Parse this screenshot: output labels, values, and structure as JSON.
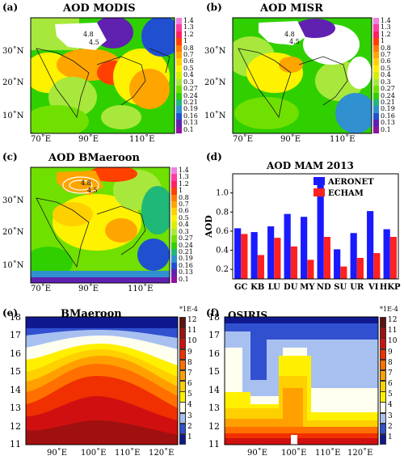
{
  "colorbar_map": {
    "labels": [
      "1.4",
      "1.3",
      "1.2",
      "1",
      "0.8",
      "0.7",
      "0.6",
      "0.5",
      "0.4",
      "0.3",
      "0.27",
      "0.24",
      "0.21",
      "0.19",
      "0.16",
      "0.13",
      "0.1"
    ],
    "colors": [
      "#f080e0",
      "#ff3ca0",
      "#ff2060",
      "#ff4000",
      "#ff7a00",
      "#ffa500",
      "#ffd000",
      "#fff200",
      "#d8f000",
      "#a8e83c",
      "#70e000",
      "#30d000",
      "#20b878",
      "#3090d0",
      "#2050d0",
      "#6020b0",
      "#9010a0"
    ]
  },
  "colorbar_profile": {
    "unit": "*1E-4",
    "labels": [
      "12",
      "11",
      "10",
      "9",
      "8",
      "7",
      "6",
      "5",
      "4",
      "3",
      "2",
      "1"
    ],
    "colors": [
      "#601010",
      "#a01010",
      "#d01010",
      "#f03000",
      "#ff7000",
      "#ffa000",
      "#ffd000",
      "#fff000",
      "#fffff0",
      "#a8c0f0",
      "#3050d0",
      "#101890"
    ]
  },
  "maps": {
    "lon_ticks": [
      "70˚E",
      "90˚E",
      "110˚E"
    ],
    "lat_ticks": [
      "30˚N",
      "20˚N",
      "10˚N"
    ],
    "contour_labels": [
      "4.8",
      "4.5"
    ]
  },
  "panels": {
    "a": {
      "label": "(a)",
      "title": "AOD MODIS"
    },
    "b": {
      "label": "(b)",
      "title": "AOD MISR"
    },
    "c": {
      "label": "(c)",
      "title": "AOD BMaeroon"
    },
    "d": {
      "label": "(d)",
      "title": "AOD MAM 2013"
    },
    "e": {
      "label": "(e)",
      "title": "BMaeroon"
    },
    "f": {
      "label": "(f)",
      "title": "OSIRIS"
    }
  },
  "chart_data": [
    {
      "type": "bar",
      "title": "AOD MAM 2013",
      "ylabel": "AOD",
      "categories": [
        "GC",
        "KB",
        "LU",
        "DU",
        "MY",
        "ND",
        "SU",
        "UR",
        "VI",
        "HKP"
      ],
      "ylim": [
        0.1,
        1.2
      ],
      "yticks": [
        "0.2",
        "0.4",
        "0.6",
        "0.8",
        "1.0"
      ],
      "legend_position": "top-right",
      "series": [
        {
          "name": "AERONET",
          "color": "#1a1aff",
          "values": [
            0.63,
            0.59,
            0.65,
            0.78,
            0.75,
            1.15,
            0.41,
            0.58,
            0.81,
            0.62
          ]
        },
        {
          "name": "ECHAM",
          "color": "#ff2020",
          "values": [
            0.57,
            0.35,
            0.53,
            0.44,
            0.3,
            0.54,
            0.23,
            0.32,
            0.37,
            0.54
          ]
        }
      ]
    },
    {
      "type": "heatmap",
      "title": "BMaeroon",
      "x_ticks": [
        "90˚E",
        "100˚E",
        "110˚E",
        "120˚E"
      ],
      "y_ticks": [
        "18",
        "17",
        "16",
        "15",
        "14",
        "13",
        "12",
        "11"
      ],
      "ylim": [
        11,
        18
      ]
    },
    {
      "type": "heatmap",
      "title": "OSIRIS",
      "x_ticks": [
        "90˚E",
        "100˚E",
        "110˚E",
        "120˚E"
      ],
      "y_ticks": [
        "18",
        "17",
        "16",
        "15",
        "14",
        "13",
        "12",
        "11"
      ],
      "ylim": [
        11,
        18
      ]
    }
  ]
}
